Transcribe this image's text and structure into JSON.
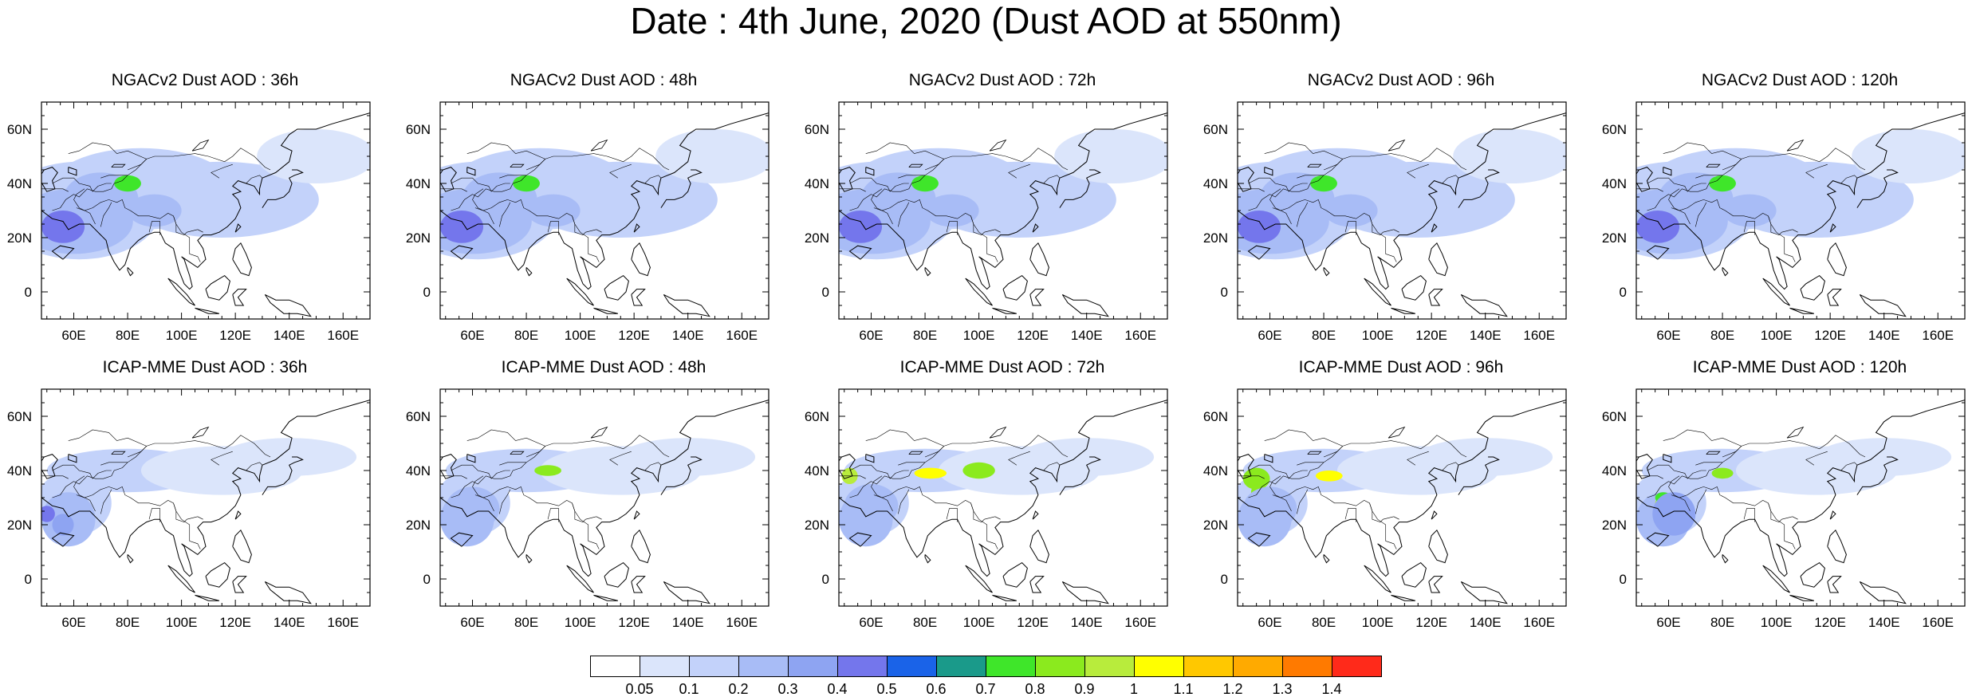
{
  "title": "Date : 4th June, 2020 (Dust AOD at 550nm)",
  "map": {
    "lon_range": [
      48,
      170
    ],
    "lat_range": [
      -10,
      70
    ],
    "lon_ticks": [
      "60E",
      "80E",
      "100E",
      "120E",
      "140E",
      "160E"
    ],
    "lat_ticks": [
      "60N",
      "40N",
      "20N",
      "0"
    ]
  },
  "panels": [
    {
      "title": "NGACv2 Dust AOD : 36h"
    },
    {
      "title": "NGACv2 Dust AOD : 48h"
    },
    {
      "title": "NGACv2 Dust AOD : 72h"
    },
    {
      "title": "NGACv2 Dust AOD : 96h"
    },
    {
      "title": "NGACv2 Dust AOD : 120h"
    },
    {
      "title": "ICAP-MME Dust AOD : 36h"
    },
    {
      "title": "ICAP-MME Dust AOD : 48h"
    },
    {
      "title": "ICAP-MME Dust AOD : 72h"
    },
    {
      "title": "ICAP-MME Dust AOD : 96h"
    },
    {
      "title": "ICAP-MME Dust AOD : 120h"
    }
  ],
  "colorbar": {
    "colors": [
      "#ffffff",
      "#dbe5fb",
      "#c3d2fa",
      "#a8bcf6",
      "#8ea4f2",
      "#7476ec",
      "#1a63e8",
      "#1a9a8a",
      "#3fe62a",
      "#8bea1e",
      "#b8ec3c",
      "#ffff00",
      "#ffc800",
      "#ffaa00",
      "#ff7a00",
      "#ff2a1a"
    ],
    "labels": [
      "0.05",
      "0.1",
      "0.2",
      "0.3",
      "0.4",
      "0.5",
      "0.6",
      "0.7",
      "0.8",
      "0.9",
      "1",
      "1.1",
      "1.2",
      "1.3",
      "1.4"
    ]
  }
}
